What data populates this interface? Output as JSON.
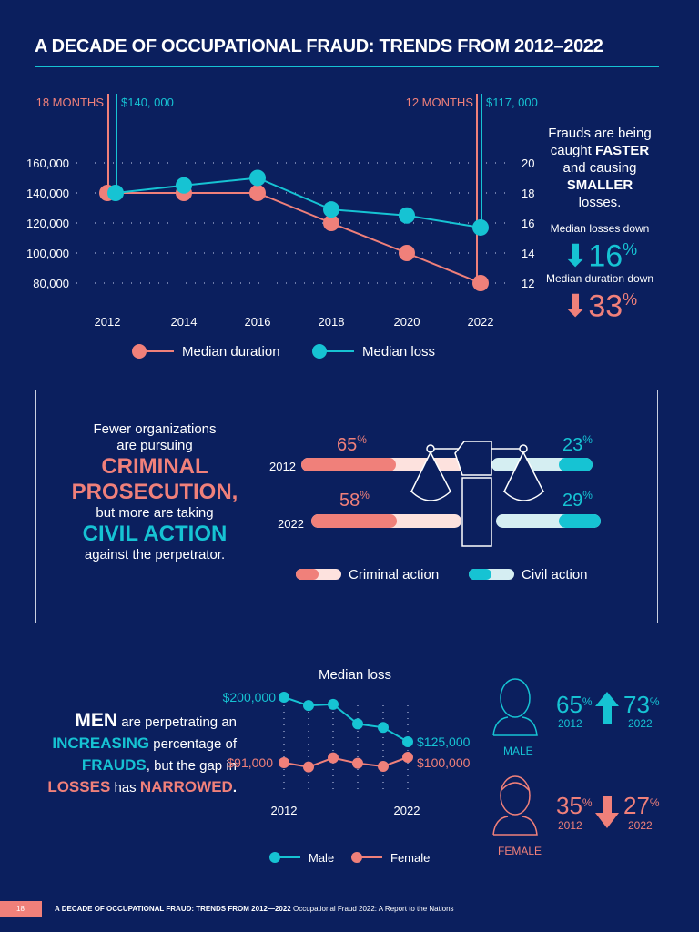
{
  "title": "A DECADE OF OCCUPATIONAL FRAUD: TRENDS FROM 2012–2022",
  "colors": {
    "background": "#0b1f5e",
    "cyan": "#16c3d3",
    "pink": "#f0807a",
    "light_pink": "#fde2de",
    "light_cyan": "#d5eef2"
  },
  "chart_data": [
    {
      "type": "line",
      "x": [
        2012,
        2014,
        2016,
        2018,
        2020,
        2022
      ],
      "left_axis": {
        "ticks": [
          "160,000",
          "140,000",
          "120,000",
          "100,000",
          "80,000"
        ],
        "ylim": [
          80000,
          160000
        ]
      },
      "right_axis": {
        "ticks": [
          "20",
          "18",
          "16",
          "14",
          "12"
        ],
        "ylim": [
          12,
          20
        ]
      },
      "grid": "dotted",
      "series": [
        {
          "name": "Median duration",
          "axis": "right",
          "values": [
            18,
            18,
            18,
            16,
            14,
            12
          ],
          "color": "#f0807a"
        },
        {
          "name": "Median loss",
          "axis": "left",
          "values": [
            140000,
            145000,
            150000,
            129000,
            125000,
            117000
          ],
          "color": "#16c3d3"
        }
      ],
      "annotations": {
        "start_duration": "18 MONTHS",
        "start_loss": "$140, 000",
        "end_duration": "12 MONTHS",
        "end_loss": "$117, 000"
      },
      "legend": "bottom"
    },
    {
      "type": "bar",
      "categories": [
        "2012",
        "2022"
      ],
      "series": [
        {
          "name": "Criminal action",
          "values": [
            65,
            58
          ]
        },
        {
          "name": "Civil action",
          "values": [
            23,
            29
          ]
        }
      ],
      "labels": {
        "c2012": "65",
        "c2022": "58",
        "v2012": "23",
        "v2022": "29",
        "pct": "%"
      }
    },
    {
      "type": "line",
      "title": "Median loss",
      "x": [
        2012,
        2014,
        2016,
        2018,
        2020,
        2022
      ],
      "x_ticks": [
        "2012",
        "2022"
      ],
      "series": [
        {
          "name": "Male",
          "values": [
            200000,
            186000,
            188000,
            155000,
            149000,
            125000
          ],
          "color": "#16c3d3"
        },
        {
          "name": "Female",
          "values": [
            91000,
            84000,
            99000,
            90000,
            85000,
            100000
          ],
          "color": "#f0807a"
        }
      ],
      "labels": {
        "male_start": "$200,000",
        "male_end": "$125,000",
        "female_start": "$91,000",
        "female_end": "$100,000"
      },
      "legend": "bottom"
    }
  ],
  "side": {
    "line1": "Frauds are being",
    "line2a": "caught ",
    "faster": "FASTER",
    "line3": "and causing",
    "smaller": "SMALLER",
    "line4b": " losses.",
    "losses_label": "Median losses down",
    "losses_value": "16",
    "duration_label": "Median duration down",
    "duration_value": "33",
    "pct": "%"
  },
  "prosecution": {
    "l1": "Fewer organizations",
    "l2": "are pursuing",
    "criminal": "CRIMINAL",
    "prosecution": "PROSECUTION,",
    "l3": "but more are taking",
    "civil": "CIVIL ACTION",
    "l4": "against the perpetrator."
  },
  "gender": {
    "men": "MEN",
    "t1": " are perpetrating an",
    "increasing": "INCREASING",
    "t2": " percentage of",
    "frauds": "FRAUDS",
    "t3": ", but the gap in",
    "losses": "LOSSES",
    "t4": " has ",
    "narrowed": "NARROWED",
    "t5": ".",
    "male_label": "MALE",
    "female_label": "FEMALE",
    "male_2012": "65",
    "male_2022": "73",
    "female_2012": "35",
    "female_2022": "27",
    "y2012": "2012",
    "y2022": "2022",
    "pct": "%"
  },
  "footer": {
    "page": "18",
    "title": "A DECADE OF OCCUPATIONAL FRAUD: TRENDS FROM 2012—2022",
    "subtitle": "Occupational Fraud 2022: A Report to the Nations"
  }
}
